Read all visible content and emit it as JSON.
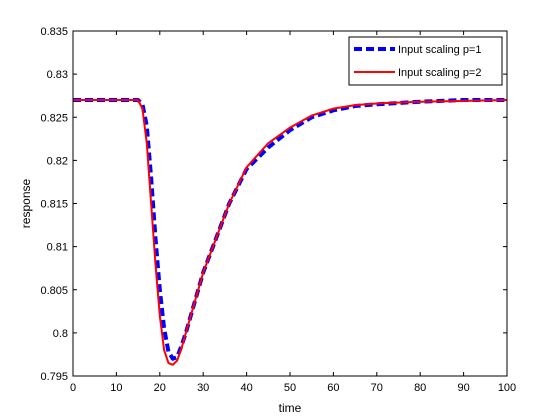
{
  "chart_data": {
    "type": "line",
    "title": "",
    "xlabel": "time",
    "ylabel": "response",
    "xlim": [
      0,
      100
    ],
    "ylim": [
      0.795,
      0.835
    ],
    "xticks": [
      "0",
      "10",
      "20",
      "30",
      "40",
      "50",
      "60",
      "70",
      "80",
      "90",
      "100"
    ],
    "yticks": [
      "0.795",
      "0.8",
      "0.805",
      "0.81",
      "0.815",
      "0.82",
      "0.825",
      "0.83",
      "0.835"
    ],
    "grid": false,
    "legend_position": "top-right",
    "series": [
      {
        "name": "Input scaling p=1",
        "color": "#0000ff",
        "style": "dashed",
        "x": [
          0,
          10,
          15,
          16,
          17,
          18,
          19,
          20,
          21,
          22,
          23,
          24,
          25,
          26,
          28,
          30,
          33,
          36,
          40,
          45,
          50,
          55,
          60,
          65,
          70,
          80,
          90,
          100
        ],
        "y": [
          0.827,
          0.827,
          0.827,
          0.8265,
          0.824,
          0.818,
          0.811,
          0.805,
          0.8005,
          0.7978,
          0.797,
          0.7972,
          0.7985,
          0.8,
          0.8035,
          0.807,
          0.811,
          0.815,
          0.819,
          0.8215,
          0.8235,
          0.825,
          0.8258,
          0.8263,
          0.8265,
          0.8268,
          0.827,
          0.827
        ]
      },
      {
        "name": "Input scaling p=2",
        "color": "#ff0000",
        "style": "solid",
        "x": [
          0,
          10,
          15,
          16,
          17,
          18,
          19,
          20,
          21,
          22,
          23,
          24,
          25,
          26,
          28,
          30,
          33,
          36,
          40,
          45,
          50,
          55,
          60,
          65,
          70,
          80,
          90,
          100
        ],
        "y": [
          0.827,
          0.827,
          0.827,
          0.826,
          0.822,
          0.815,
          0.808,
          0.802,
          0.798,
          0.7965,
          0.7963,
          0.7968,
          0.7982,
          0.8,
          0.8035,
          0.807,
          0.811,
          0.815,
          0.8192,
          0.822,
          0.8238,
          0.8252,
          0.826,
          0.8264,
          0.8266,
          0.8268,
          0.8269,
          0.827
        ]
      }
    ]
  }
}
